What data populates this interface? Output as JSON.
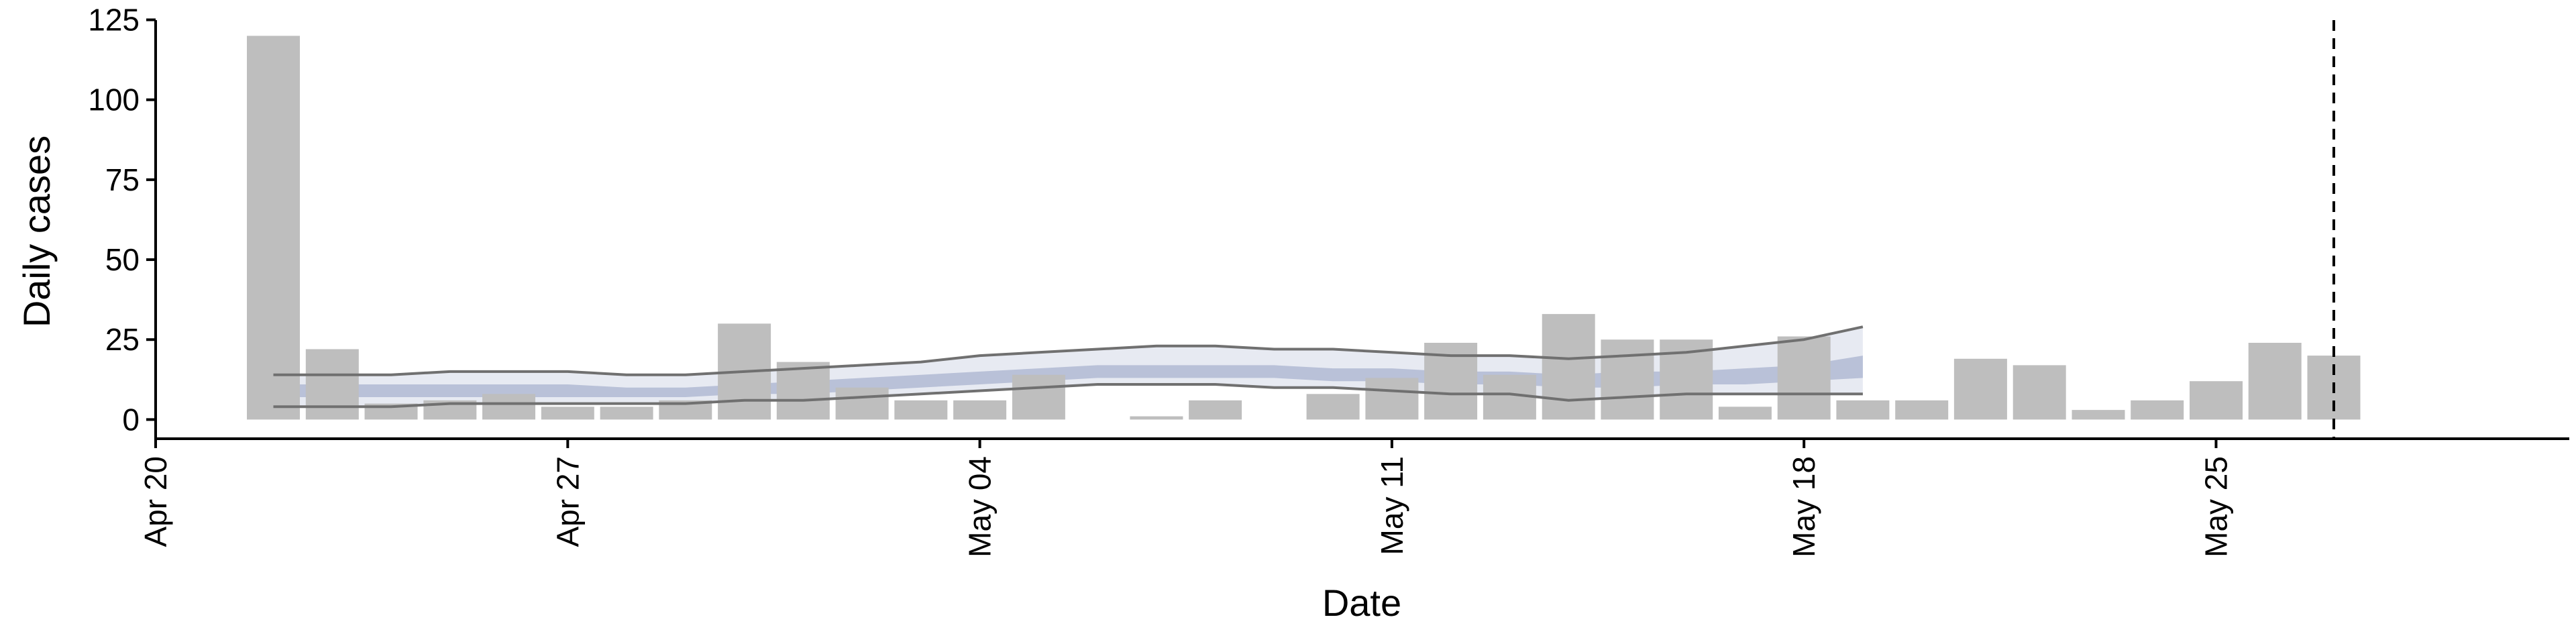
{
  "chart_data": {
    "type": "bar",
    "xlabel": "Date",
    "ylabel": "Daily cases",
    "x_ticks": [
      "Apr 20",
      "Apr 27",
      "May 04",
      "May 11",
      "May 18",
      "May 25"
    ],
    "x_tick_dates": [
      "2020-04-20",
      "2020-04-27",
      "2020-05-04",
      "2020-05-11",
      "2020-05-18",
      "2020-05-25"
    ],
    "y_ticks": [
      "0",
      "25",
      "50",
      "75",
      "100",
      "125"
    ],
    "y_tick_values": [
      0,
      25,
      50,
      75,
      100,
      125
    ],
    "xlim": [
      "2020-04-20",
      "2020-05-31"
    ],
    "ylim": [
      -6,
      127
    ],
    "bars": {
      "color": "#bebebe",
      "dates": [
        "2020-04-22",
        "2020-04-23",
        "2020-04-24",
        "2020-04-25",
        "2020-04-26",
        "2020-04-27",
        "2020-04-28",
        "2020-04-29",
        "2020-04-30",
        "2020-05-01",
        "2020-05-02",
        "2020-05-03",
        "2020-05-04",
        "2020-05-05",
        "2020-05-06",
        "2020-05-07",
        "2020-05-08",
        "2020-05-09",
        "2020-05-10",
        "2020-05-11",
        "2020-05-12",
        "2020-05-13",
        "2020-05-14",
        "2020-05-15",
        "2020-05-16",
        "2020-05-17",
        "2020-05-18",
        "2020-05-19",
        "2020-05-20",
        "2020-05-21",
        "2020-05-22",
        "2020-05-23",
        "2020-05-24",
        "2020-05-25",
        "2020-05-26",
        "2020-05-27"
      ],
      "values": [
        120,
        22,
        5,
        6,
        8,
        4,
        4,
        6,
        30,
        18,
        10,
        6,
        6,
        14,
        0,
        1,
        6,
        0,
        8,
        13,
        24,
        14,
        33,
        25,
        25,
        4,
        26,
        6,
        6,
        19,
        17,
        3,
        6,
        12,
        24,
        20
      ]
    },
    "estimate": {
      "dates": [
        "2020-04-22",
        "2020-04-23",
        "2020-04-24",
        "2020-04-25",
        "2020-04-26",
        "2020-04-27",
        "2020-04-28",
        "2020-04-29",
        "2020-04-30",
        "2020-05-01",
        "2020-05-02",
        "2020-05-03",
        "2020-05-04",
        "2020-05-05",
        "2020-05-06",
        "2020-05-07",
        "2020-05-08",
        "2020-05-09",
        "2020-05-10",
        "2020-05-11",
        "2020-05-12",
        "2020-05-13",
        "2020-05-14",
        "2020-05-15",
        "2020-05-16",
        "2020-05-17",
        "2020-05-18",
        "2020-05-19"
      ],
      "outer_upper": [
        14,
        14,
        14,
        15,
        15,
        15,
        14,
        14,
        15,
        16,
        17,
        18,
        20,
        21,
        22,
        23,
        23,
        22,
        22,
        21,
        20,
        20,
        19,
        20,
        21,
        23,
        25,
        29
      ],
      "outer_lower": [
        4,
        4,
        4,
        5,
        5,
        5,
        5,
        5,
        6,
        6,
        7,
        8,
        9,
        10,
        11,
        11,
        11,
        10,
        10,
        9,
        8,
        8,
        6,
        7,
        8,
        8,
        8,
        8
      ],
      "inner_upper": [
        11,
        11,
        11,
        11,
        11,
        11,
        10,
        10,
        11,
        12,
        13,
        14,
        15,
        16,
        17,
        17,
        17,
        17,
        16,
        16,
        15,
        15,
        14,
        15,
        15,
        16,
        17,
        20
      ],
      "inner_lower": [
        7,
        7,
        7,
        7,
        7,
        7,
        7,
        7,
        8,
        8,
        9,
        10,
        11,
        12,
        13,
        13,
        13,
        13,
        12,
        12,
        11,
        11,
        10,
        10,
        11,
        11,
        12,
        13
      ],
      "outer_color": "#dfe3ee",
      "inner_color": "#a9b3cf",
      "line_color": "#707070"
    },
    "vline_date": "2020-05-27",
    "grid": false,
    "legend": "none"
  }
}
